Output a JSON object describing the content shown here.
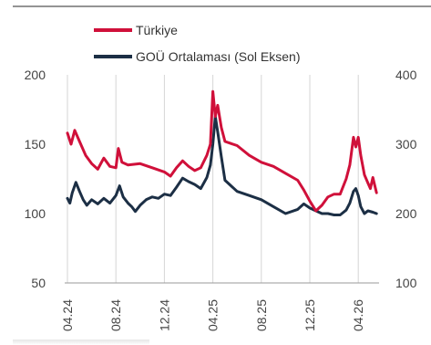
{
  "chart_data": {
    "type": "line",
    "title": "",
    "xlabel": "",
    "ylabel": "",
    "x_ticks": [
      "04.24",
      "08.24",
      "12.24",
      "04.25",
      "08.25",
      "12.25",
      "04.26"
    ],
    "left_axis": {
      "ticks": [
        "200",
        "150",
        "100",
        "50"
      ],
      "ylim": [
        50,
        200
      ]
    },
    "right_axis": {
      "ticks": [
        "400",
        "300",
        "200",
        "100"
      ],
      "ylim": [
        100,
        400
      ]
    },
    "grid": {
      "vertical": true,
      "horizontal": false
    },
    "legend_position": "top-left",
    "series": [
      {
        "name": "Türkiye",
        "axis": "left",
        "color": "#d0103a",
        "points": [
          [
            0.0,
            158
          ],
          [
            0.3,
            150
          ],
          [
            0.6,
            160
          ],
          [
            1.0,
            152
          ],
          [
            1.5,
            142
          ],
          [
            2.0,
            136
          ],
          [
            2.5,
            132
          ],
          [
            3.0,
            140
          ],
          [
            3.5,
            134
          ],
          [
            4.0,
            133
          ],
          [
            4.2,
            147
          ],
          [
            4.5,
            137
          ],
          [
            5.0,
            135
          ],
          [
            6.0,
            136
          ],
          [
            7.0,
            133
          ],
          [
            8.0,
            130
          ],
          [
            8.5,
            127
          ],
          [
            9.0,
            133
          ],
          [
            9.5,
            138
          ],
          [
            10.0,
            134
          ],
          [
            10.5,
            131
          ],
          [
            11.0,
            133
          ],
          [
            11.5,
            142
          ],
          [
            11.8,
            150
          ],
          [
            12.0,
            188
          ],
          [
            12.2,
            170
          ],
          [
            12.4,
            178
          ],
          [
            12.7,
            162
          ],
          [
            13.0,
            152
          ],
          [
            14.0,
            149
          ],
          [
            15.0,
            142
          ],
          [
            16.0,
            137
          ],
          [
            17.0,
            134
          ],
          [
            18.0,
            129
          ],
          [
            19.0,
            124
          ],
          [
            19.5,
            117
          ],
          [
            20.0,
            109
          ],
          [
            20.5,
            102
          ],
          [
            21.0,
            106
          ],
          [
            21.5,
            112
          ],
          [
            22.0,
            114
          ],
          [
            22.5,
            114
          ],
          [
            23.0,
            125
          ],
          [
            23.3,
            135
          ],
          [
            23.6,
            155
          ],
          [
            23.8,
            148
          ],
          [
            24.0,
            155
          ],
          [
            24.2,
            142
          ],
          [
            24.5,
            128
          ],
          [
            24.8,
            122
          ],
          [
            25.0,
            118
          ],
          [
            25.2,
            126
          ],
          [
            25.5,
            115
          ]
        ]
      },
      {
        "name": "GOÜ Ortalaması (Sol Eksen)",
        "axis": "right",
        "color": "#1c2f45",
        "points": [
          [
            0.0,
            222
          ],
          [
            0.2,
            215
          ],
          [
            0.4,
            230
          ],
          [
            0.7,
            245
          ],
          [
            1.0,
            232
          ],
          [
            1.3,
            220
          ],
          [
            1.6,
            212
          ],
          [
            2.0,
            220
          ],
          [
            2.5,
            214
          ],
          [
            3.0,
            222
          ],
          [
            3.5,
            215
          ],
          [
            4.0,
            226
          ],
          [
            4.3,
            240
          ],
          [
            4.6,
            224
          ],
          [
            5.0,
            215
          ],
          [
            5.3,
            210
          ],
          [
            5.6,
            203
          ],
          [
            6.0,
            212
          ],
          [
            6.5,
            220
          ],
          [
            7.0,
            224
          ],
          [
            7.5,
            222
          ],
          [
            8.0,
            228
          ],
          [
            8.5,
            226
          ],
          [
            9.0,
            238
          ],
          [
            9.5,
            251
          ],
          [
            10.0,
            246
          ],
          [
            10.5,
            242
          ],
          [
            11.0,
            236
          ],
          [
            11.5,
            252
          ],
          [
            11.8,
            270
          ],
          [
            12.0,
            300
          ],
          [
            12.2,
            340
          ],
          [
            12.4,
            318
          ],
          [
            12.7,
            282
          ],
          [
            13.0,
            248
          ],
          [
            14.0,
            232
          ],
          [
            15.0,
            226
          ],
          [
            16.0,
            220
          ],
          [
            17.0,
            210
          ],
          [
            18.0,
            200
          ],
          [
            19.0,
            206
          ],
          [
            19.5,
            214
          ],
          [
            20.0,
            208
          ],
          [
            20.5,
            204
          ],
          [
            21.0,
            200
          ],
          [
            21.5,
            200
          ],
          [
            22.0,
            198
          ],
          [
            22.5,
            198
          ],
          [
            23.0,
            205
          ],
          [
            23.3,
            215
          ],
          [
            23.6,
            232
          ],
          [
            23.8,
            236
          ],
          [
            24.0,
            226
          ],
          [
            24.2,
            210
          ],
          [
            24.5,
            200
          ],
          [
            24.8,
            204
          ],
          [
            25.2,
            202
          ],
          [
            25.5,
            200
          ]
        ]
      }
    ]
  }
}
